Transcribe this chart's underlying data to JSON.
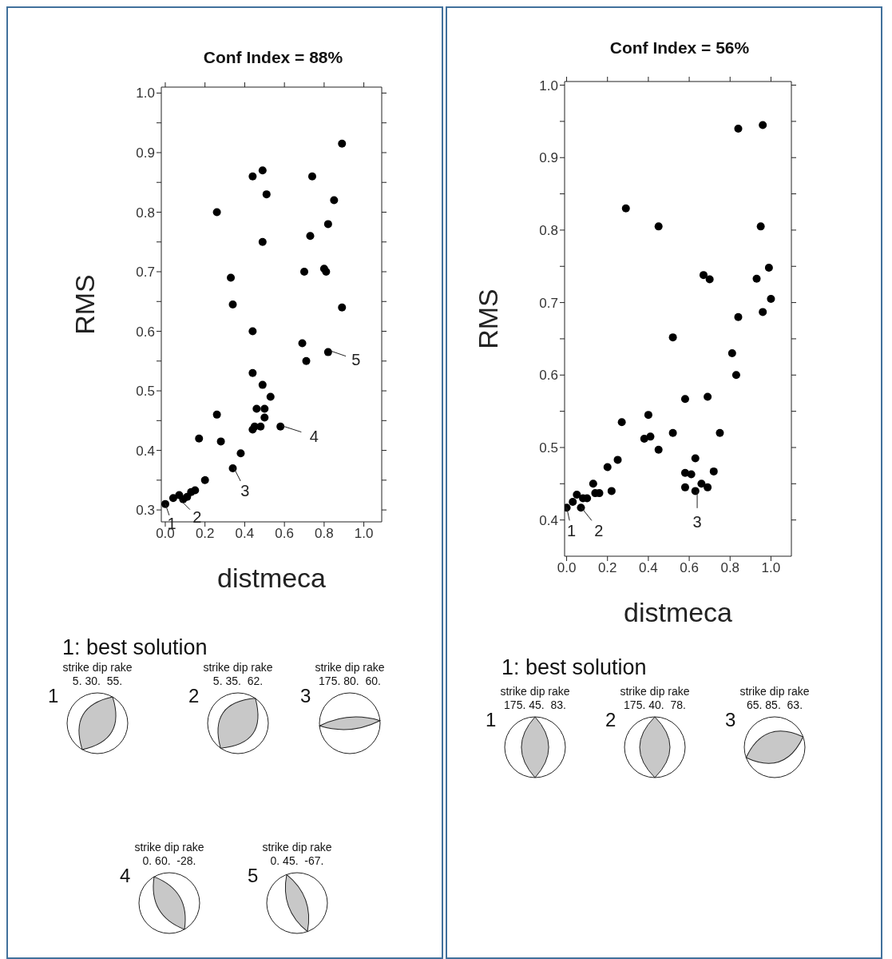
{
  "chart_data": [
    {
      "type": "scatter",
      "title": "Conf Index = 88%",
      "xlabel": "distmeca",
      "ylabel": "RMS",
      "marker": "circle",
      "xlim": [
        -0.02,
        1.09
      ],
      "ylim": [
        0.28,
        1.01
      ],
      "xticks": [
        {
          "value": 0,
          "label": "0.0"
        },
        {
          "value": 0.2,
          "label": "0.2"
        },
        {
          "value": 0.4,
          "label": "0.4"
        },
        {
          "value": 0.6,
          "label": "0.6"
        },
        {
          "value": 0.8,
          "label": "0.8"
        },
        {
          "value": 1,
          "label": "1.0"
        }
      ],
      "yticks": [
        {
          "value": 0.3,
          "label": "0.3"
        },
        {
          "value": 0.35,
          "label": null
        },
        {
          "value": 0.4,
          "label": "0.4"
        },
        {
          "value": 0.45,
          "label": null
        },
        {
          "value": 0.5,
          "label": "0.5"
        },
        {
          "value": 0.55,
          "label": null
        },
        {
          "value": 0.6,
          "label": "0.6"
        },
        {
          "value": 0.65,
          "label": null
        },
        {
          "value": 0.7,
          "label": "0.7"
        },
        {
          "value": 0.75,
          "label": null
        },
        {
          "value": 0.8,
          "label": "0.8"
        },
        {
          "value": 0.85,
          "label": null
        },
        {
          "value": 0.9,
          "label": "0.9"
        },
        {
          "value": 0.95,
          "label": null
        },
        {
          "value": 1,
          "label": "1.0"
        }
      ],
      "series": [
        {
          "color": "#000000",
          "x": [
            0.0,
            0.04,
            0.07,
            0.09,
            0.11,
            0.13,
            0.15,
            0.17,
            0.2,
            0.26,
            0.26,
            0.28,
            0.33,
            0.34,
            0.34,
            0.38,
            0.44,
            0.44,
            0.44,
            0.44,
            0.45,
            0.46,
            0.47,
            0.48,
            0.49,
            0.49,
            0.49,
            0.5,
            0.5,
            0.51,
            0.53,
            0.58,
            0.69,
            0.7,
            0.71,
            0.73,
            0.74,
            0.8,
            0.81,
            0.82,
            0.82,
            0.85,
            0.89,
            0.89
          ],
          "values": [
            0.31,
            0.32,
            0.325,
            0.318,
            0.322,
            0.33,
            0.333,
            0.42,
            0.35,
            0.8,
            0.46,
            0.415,
            0.69,
            0.645,
            0.37,
            0.395,
            0.86,
            0.6,
            0.53,
            0.435,
            0.44,
            0.47,
            null,
            0.44,
            0.87,
            0.75,
            0.51,
            0.455,
            0.47,
            0.83,
            0.49,
            0.44,
            0.58,
            0.7,
            0.55,
            0.76,
            0.86,
            0.705,
            0.7,
            0.78,
            0.565,
            0.82,
            0.915,
            0.64
          ]
        }
      ],
      "annotations": [
        {
          "text": "1",
          "x": 0,
          "y": 0.31
        },
        {
          "text": "2",
          "x": 0.07,
          "y": 0.318
        },
        {
          "text": "3",
          "x": 0.34,
          "y": 0.37
        },
        {
          "text": "4",
          "x": 0.58,
          "y": 0.44
        },
        {
          "text": "5",
          "x": 0.82,
          "y": 0.565
        },
        "1: best solution",
        "1",
        "strike dip rake",
        "5. 30.  55.",
        "2",
        "strike dip rake",
        "5. 35.  62.",
        "3",
        "strike dip rake",
        "175. 80.  60.",
        "4",
        "strike dip rake",
        "0. 60.  -28.",
        "5",
        "strike dip rake",
        "0. 45.  -67."
      ]
    },
    {
      "type": "scatter",
      "title": "Conf Index = 56%",
      "xlabel": "distmeca",
      "ylabel": "RMS",
      "marker": "circle",
      "xlim": [
        -0.01,
        1.1
      ],
      "ylim": [
        0.35,
        1.005
      ],
      "xticks": [
        {
          "value": 0,
          "label": "0.0"
        },
        {
          "value": 0.2,
          "label": "0.2"
        },
        {
          "value": 0.4,
          "label": "0.4"
        },
        {
          "value": 0.6,
          "label": "0.6"
        },
        {
          "value": 0.8,
          "label": "0.8"
        },
        {
          "value": 1,
          "label": "1.0"
        }
      ],
      "yticks": [
        {
          "value": 0.4,
          "label": "0.4"
        },
        {
          "value": 0.45,
          "label": null
        },
        {
          "value": 0.5,
          "label": "0.5"
        },
        {
          "value": 0.55,
          "label": null
        },
        {
          "value": 0.6,
          "label": "0.6"
        },
        {
          "value": 0.65,
          "label": null
        },
        {
          "value": 0.7,
          "label": "0.7"
        },
        {
          "value": 0.75,
          "label": null
        },
        {
          "value": 0.8,
          "label": "0.8"
        },
        {
          "value": 0.85,
          "label": null
        },
        {
          "value": 0.9,
          "label": "0.9"
        },
        {
          "value": 0.95,
          "label": null
        },
        {
          "value": 1,
          "label": "1.0"
        }
      ],
      "series": [
        {
          "color": "#000000",
          "x": [
            0.0,
            0.03,
            0.05,
            0.07,
            0.08,
            0.1,
            0.13,
            0.14,
            0.16,
            0.19,
            0.2,
            0.22,
            0.25,
            0.27,
            0.29,
            0.38,
            0.4,
            0.41,
            0.45,
            0.45,
            0.52,
            0.52,
            0.58,
            0.58,
            0.58,
            0.61,
            0.63,
            0.63,
            0.66,
            0.67,
            0.69,
            0.69,
            0.7,
            0.72,
            0.75,
            0.81,
            0.83,
            0.84,
            0.84,
            0.93,
            0.95,
            0.96,
            0.96,
            0.99,
            1.0
          ],
          "values": [
            0.417,
            0.425,
            0.435,
            0.417,
            0.43,
            0.43,
            0.45,
            0.437,
            0.437,
            null,
            0.473,
            0.44,
            0.483,
            0.535,
            0.83,
            0.512,
            0.545,
            0.515,
            0.497,
            0.805,
            0.652,
            0.52,
            0.567,
            0.465,
            0.445,
            0.463,
            0.485,
            0.44,
            0.45,
            0.738,
            0.57,
            0.445,
            0.732,
            0.467,
            0.52,
            0.63,
            0.6,
            0.68,
            0.94,
            0.733,
            0.805,
            0.945,
            0.687,
            0.748,
            0.705
          ]
        }
      ],
      "annotations": [
        {
          "text": "1",
          "x": 0,
          "y": 0.417
        },
        {
          "text": "2",
          "x": 0.07,
          "y": 0.417
        },
        {
          "text": "3",
          "x": 0.63,
          "y": 0.44
        },
        "1: best solution",
        "1",
        "strike dip rake",
        "175. 45.  83.",
        "2",
        "strike dip rake",
        "175. 40.  78.",
        "3",
        "strike dip rake",
        "65. 85.  63."
      ]
    }
  ]
}
